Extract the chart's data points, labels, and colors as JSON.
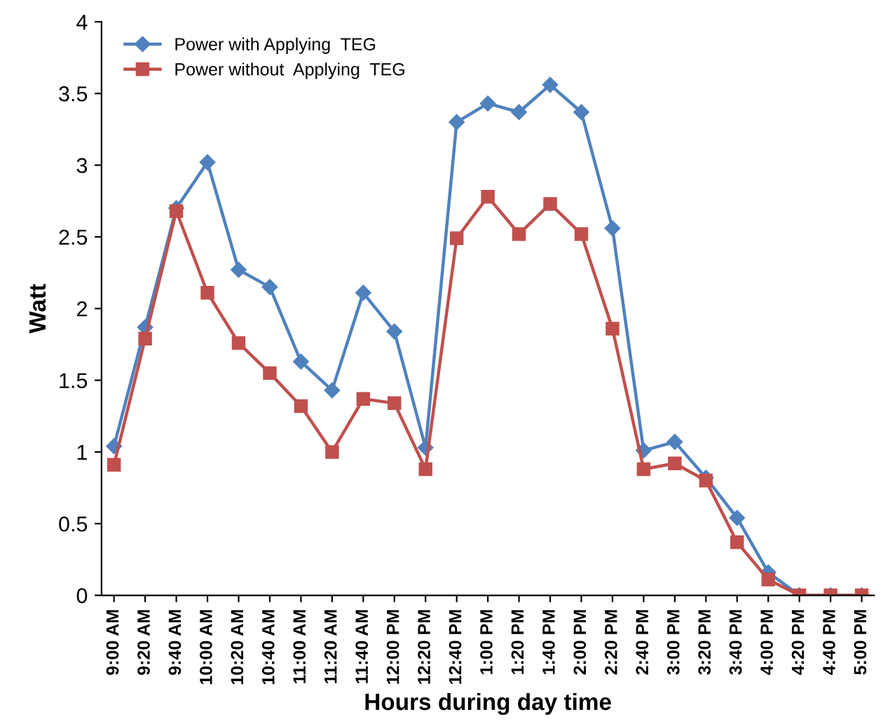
{
  "chart_data": {
    "type": "line",
    "xlabel": "Hours during day time",
    "ylabel": "Watt",
    "categories": [
      "9:00 AM",
      "9:20 AM",
      "9:40 AM",
      "10:00 AM",
      "10:20 AM",
      "10:40 AM",
      "11:00 AM",
      "11:20 AM",
      "11:40 AM",
      "12:00 PM",
      "12:20 PM",
      "12:40 PM",
      "1:00 PM",
      "1:20 PM",
      "1:40 PM",
      "2:00 PM",
      "2:20 PM",
      "2:40 PM",
      "3:00 PM",
      "3:20 PM",
      "3:40 PM",
      "4:00 PM",
      "4:20 PM",
      "4:40 PM",
      "5:00 PM"
    ],
    "series": [
      {
        "name": "Power with Applying  TEG",
        "color": "#4f81bd",
        "marker": "diamond",
        "values": [
          1.04,
          1.87,
          2.7,
          3.02,
          2.27,
          2.15,
          1.63,
          1.43,
          2.11,
          1.84,
          1.03,
          3.3,
          3.43,
          3.37,
          3.56,
          3.37,
          2.56,
          1.01,
          1.07,
          0.82,
          0.54,
          0.16,
          0,
          0,
          0
        ]
      },
      {
        "name": "Power without  Applying  TEG",
        "color": "#c0504d",
        "marker": "square",
        "values": [
          0.91,
          1.79,
          2.68,
          2.11,
          1.76,
          1.55,
          1.32,
          1.0,
          1.37,
          1.34,
          0.88,
          2.49,
          2.78,
          2.52,
          2.73,
          2.52,
          1.86,
          0.88,
          0.92,
          0.8,
          0.37,
          0.11,
          0,
          0,
          0
        ]
      }
    ],
    "ylim": [
      0,
      4
    ],
    "yticks": [
      0,
      0.5,
      1,
      1.5,
      2,
      2.5,
      3,
      3.5,
      4
    ],
    "grid": false,
    "legend": "top left",
    "line_style": "solid"
  }
}
